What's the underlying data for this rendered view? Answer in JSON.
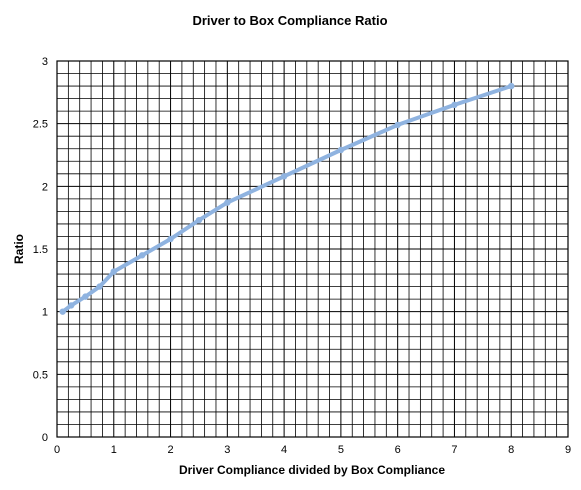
{
  "chart_data": {
    "type": "line",
    "title": "Driver to Box Compliance Ratio",
    "xlabel": "Driver Compliance divided by Box Compliance",
    "ylabel": "Ratio",
    "xlim": [
      0,
      9
    ],
    "ylim": [
      0,
      3
    ],
    "x_ticks": [
      "0",
      "1",
      "2",
      "3",
      "4",
      "5",
      "6",
      "7",
      "8",
      "9"
    ],
    "y_ticks": [
      "0",
      "0.5",
      "1",
      "1.5",
      "2",
      "2.5",
      "3"
    ],
    "grid": true,
    "legend": "none",
    "series": [
      {
        "color": "#8fb3e0",
        "x": [
          0.1,
          0.25,
          0.5,
          0.75,
          1,
          1.5,
          2,
          2.5,
          3,
          4,
          5,
          6,
          7,
          8
        ],
        "y": [
          1.0,
          1.05,
          1.12,
          1.2,
          1.32,
          1.45,
          1.58,
          1.73,
          1.87,
          2.08,
          2.29,
          2.49,
          2.65,
          2.8
        ]
      }
    ]
  }
}
